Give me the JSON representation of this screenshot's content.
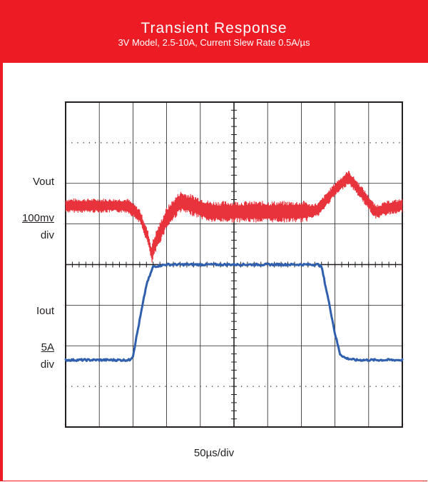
{
  "header": {
    "title": "Transient Response",
    "subtitle": "3V Model, 2.5-10A, Current Slew Rate 0.5A/µs"
  },
  "labels": {
    "vout": "Vout",
    "vout_scale": "100mv",
    "vout_div": "div",
    "iout": "Iout",
    "iout_scale": "5A",
    "iout_div": "div",
    "time_scale": "50µs/div"
  },
  "colors": {
    "brand": "#ed1c24",
    "vout_trace": "#e8323c",
    "iout_trace": "#2f5fad",
    "grid": "#231f20"
  },
  "chart_data": {
    "type": "line",
    "x_unit": "div",
    "y_unit": "div",
    "xlim": [
      0,
      10
    ],
    "ylim": [
      0,
      8
    ],
    "grid": true,
    "series": [
      {
        "x": [
          0,
          1.0,
          1.85,
          2.2,
          2.45,
          2.55,
          2.7,
          3.0,
          3.4,
          3.8,
          4.3,
          5.0,
          6.0,
          7.0,
          7.5,
          8.0,
          8.4,
          8.8,
          9.2,
          9.6,
          10.0
        ],
        "y": [
          5.45,
          5.45,
          5.45,
          5.2,
          4.65,
          4.25,
          4.6,
          5.15,
          5.55,
          5.45,
          5.3,
          5.3,
          5.3,
          5.3,
          5.35,
          5.85,
          6.15,
          5.75,
          5.3,
          5.4,
          5.45
        ]
      },
      {
        "x": [
          0,
          1.0,
          1.9,
          2.0,
          2.1,
          2.25,
          2.4,
          2.6,
          3.0,
          5.0,
          7.0,
          7.5,
          7.6,
          7.7,
          7.85,
          8.0,
          8.15,
          8.3,
          8.6,
          10.0
        ],
        "y": [
          1.65,
          1.65,
          1.65,
          1.75,
          2.2,
          2.85,
          3.5,
          3.95,
          4.0,
          4.0,
          4.0,
          4.0,
          3.95,
          3.55,
          2.95,
          2.3,
          1.8,
          1.7,
          1.65,
          1.65
        ]
      }
    ]
  }
}
